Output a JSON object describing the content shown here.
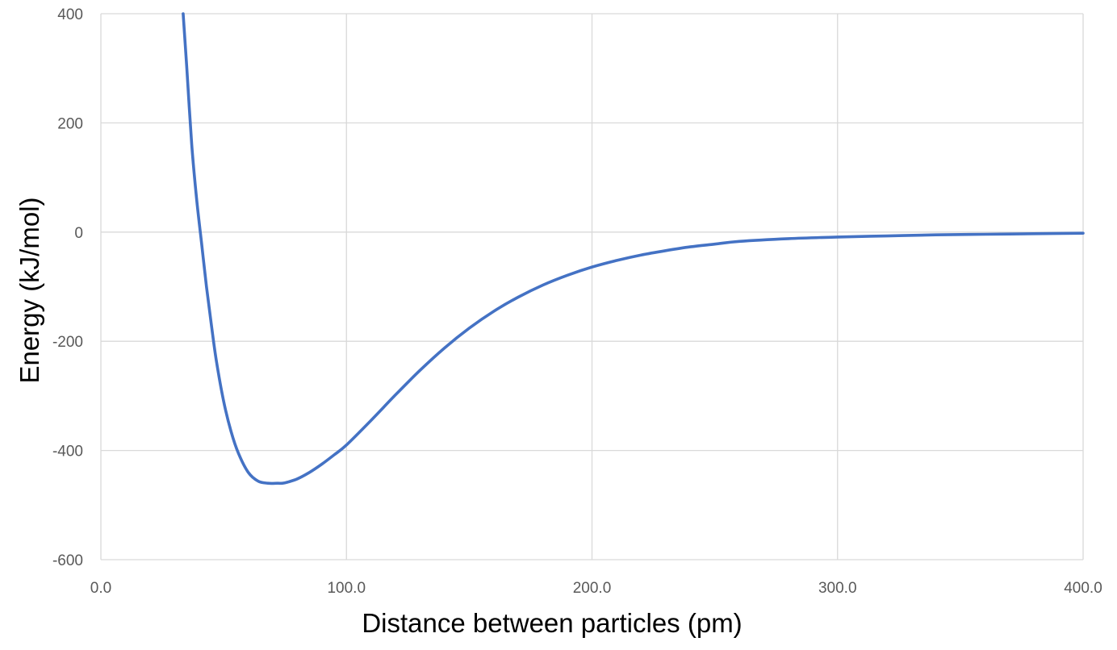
{
  "chart_data": {
    "type": "line",
    "title": "",
    "xlabel": "Distance between particles (pm)",
    "ylabel": "Energy (kJ/mol)",
    "xlim": [
      0,
      400
    ],
    "ylim": [
      -600,
      400
    ],
    "x_ticks": [
      {
        "value": 0,
        "label": "0.0"
      },
      {
        "value": 100,
        "label": "100.0"
      },
      {
        "value": 200,
        "label": "200.0"
      },
      {
        "value": 300,
        "label": "300.0"
      },
      {
        "value": 400,
        "label": "400.0"
      }
    ],
    "y_ticks": [
      {
        "value": 400,
        "label": "400"
      },
      {
        "value": 200,
        "label": "200"
      },
      {
        "value": 0,
        "label": "0"
      },
      {
        "value": -200,
        "label": "-200"
      },
      {
        "value": -400,
        "label": "-400"
      },
      {
        "value": -600,
        "label": "-600"
      }
    ],
    "grid": true,
    "legend": "none",
    "series": [
      {
        "color": "#4472C4",
        "x": [
          33.5,
          35,
          37,
          39,
          41,
          43,
          45,
          47,
          50,
          53,
          56,
          60,
          64,
          68,
          72,
          74,
          76,
          80,
          85,
          90,
          95,
          100,
          110,
          120,
          130,
          140,
          150,
          160,
          170,
          180,
          190,
          200,
          210,
          220,
          230,
          240,
          250,
          260,
          280,
          300,
          320,
          340,
          360,
          380,
          400
        ],
        "y": [
          400,
          300,
          160,
          60,
          -20,
          -100,
          -170,
          -235,
          -310,
          -365,
          -405,
          -440,
          -456,
          -460,
          -460,
          -460,
          -458,
          -452,
          -440,
          -425,
          -408,
          -390,
          -345,
          -298,
          -253,
          -212,
          -176,
          -145,
          -119,
          -97,
          -79,
          -64,
          -52,
          -42,
          -34,
          -27,
          -22,
          -17,
          -12,
          -9,
          -7,
          -5,
          -4,
          -3,
          -2
        ]
      }
    ]
  }
}
